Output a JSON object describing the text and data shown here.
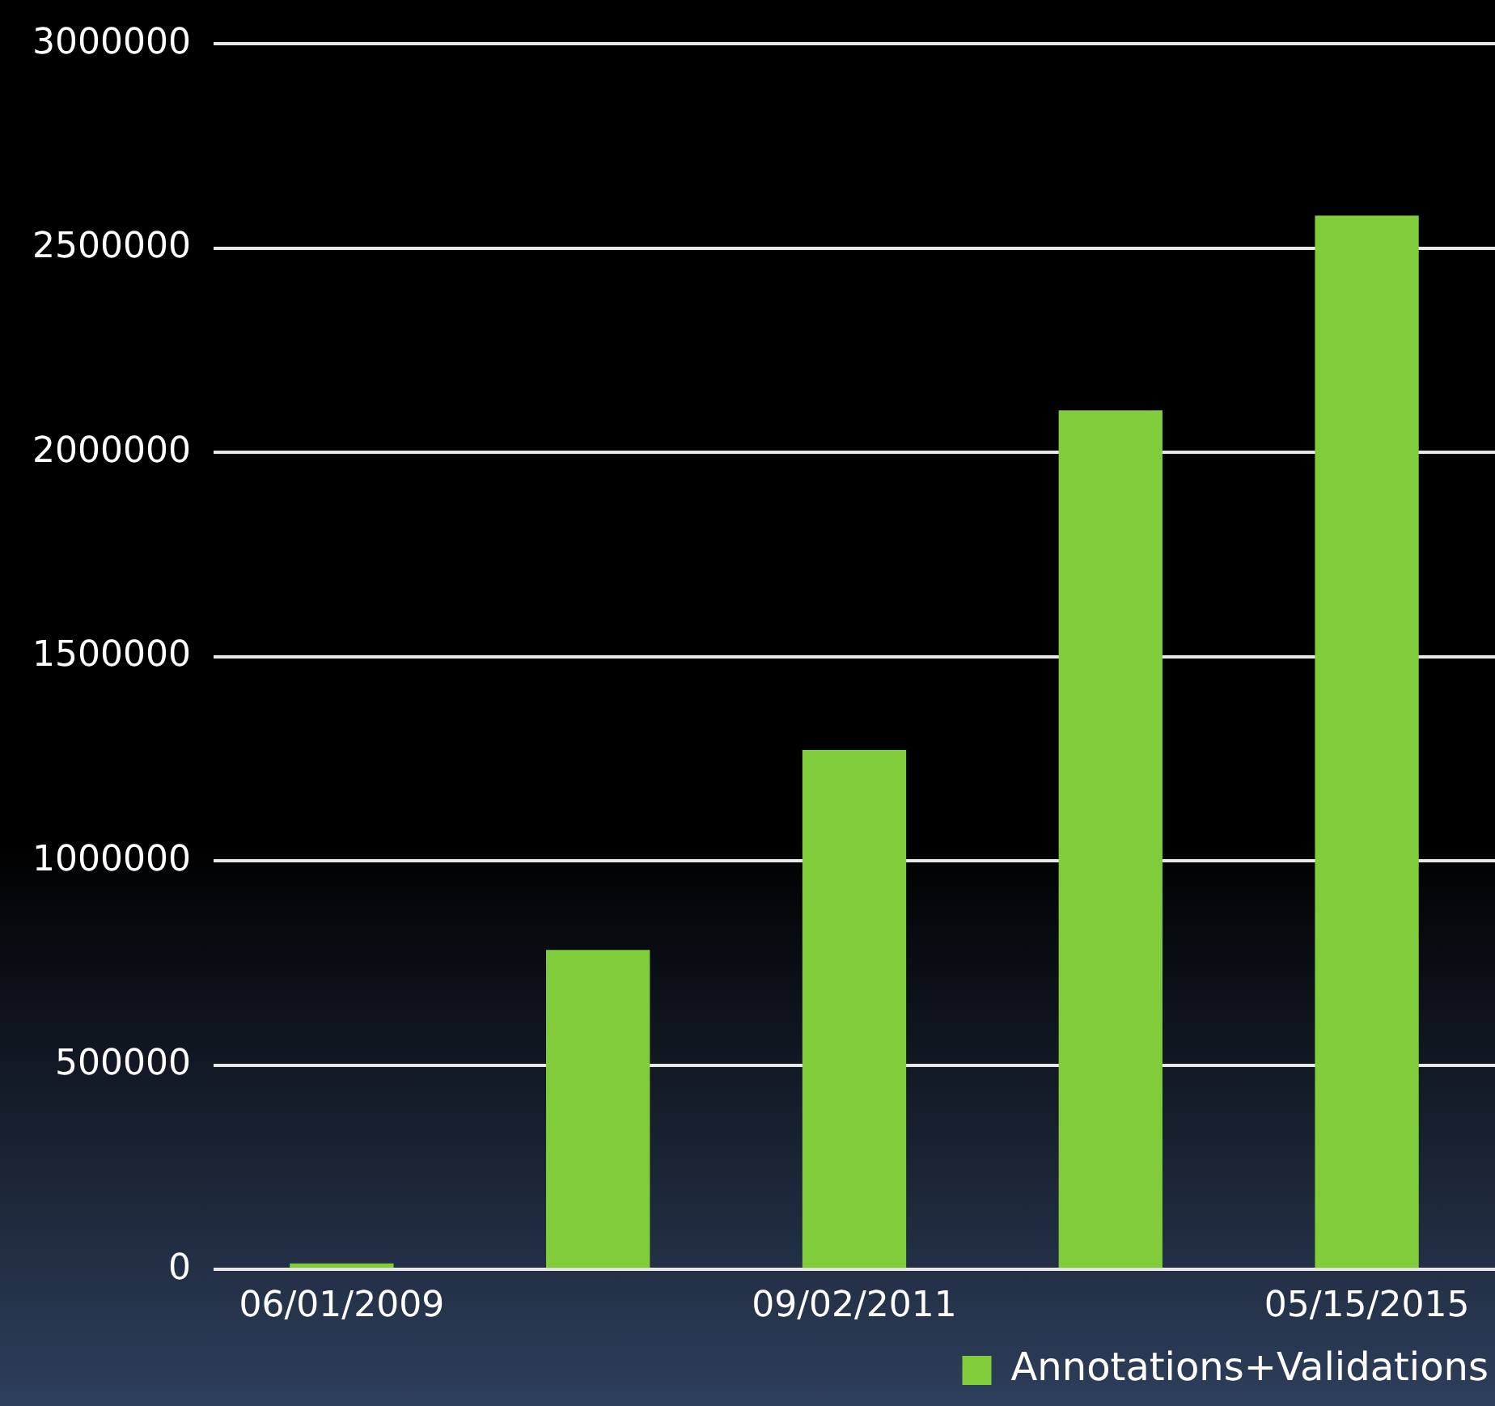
{
  "chart_data": {
    "type": "bar",
    "categories": [
      "06/01/2009",
      null,
      "09/02/2011",
      null,
      "05/15/2015"
    ],
    "series": [
      {
        "name": "Annotations+Validations",
        "color": "#80cc3a",
        "values": [
          15000,
          782000,
          1272000,
          2103000,
          2580000
        ]
      }
    ],
    "ylim": [
      0,
      3000000
    ],
    "yticks": [
      0,
      500000,
      1000000,
      1500000,
      2000000,
      2500000,
      3000000
    ],
    "grid": "y",
    "legend": "bottom right"
  }
}
